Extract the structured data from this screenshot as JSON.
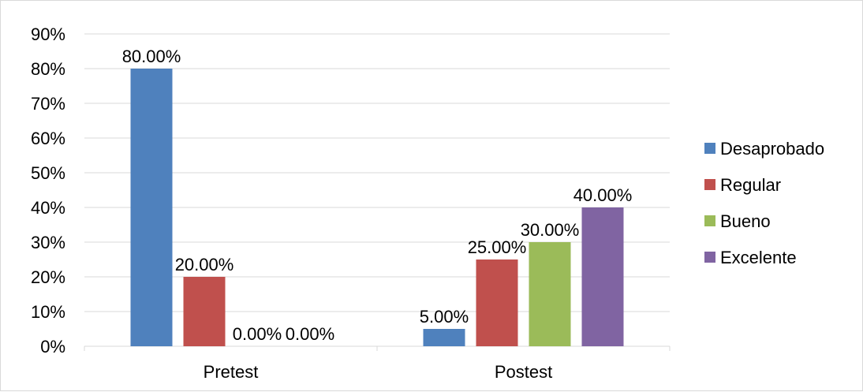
{
  "chart_data": {
    "type": "bar",
    "categories": [
      "Pretest",
      "Postest"
    ],
    "series": [
      {
        "name": "Desaprobado",
        "color": "#4f81bd",
        "values": [
          80.0,
          5.0
        ],
        "labels": [
          "80.00%",
          "5.00%"
        ]
      },
      {
        "name": "Regular",
        "color": "#c0504d",
        "values": [
          20.0,
          25.0
        ],
        "labels": [
          "20.00%",
          "25.00%"
        ]
      },
      {
        "name": "Bueno",
        "color": "#9bbb59",
        "values": [
          0.0,
          30.0
        ],
        "labels": [
          "0.00%",
          "30.00%"
        ]
      },
      {
        "name": "Excelente",
        "color": "#8064a2",
        "values": [
          0.0,
          40.0
        ],
        "labels": [
          "0.00%",
          "40.00%"
        ]
      }
    ],
    "y_ticks": [
      "0%",
      "10%",
      "20%",
      "30%",
      "40%",
      "50%",
      "60%",
      "70%",
      "80%",
      "90%"
    ],
    "ylim": [
      0,
      90
    ],
    "grid": true,
    "legend_position": "right",
    "gridline_color": "#d9d9d9"
  }
}
